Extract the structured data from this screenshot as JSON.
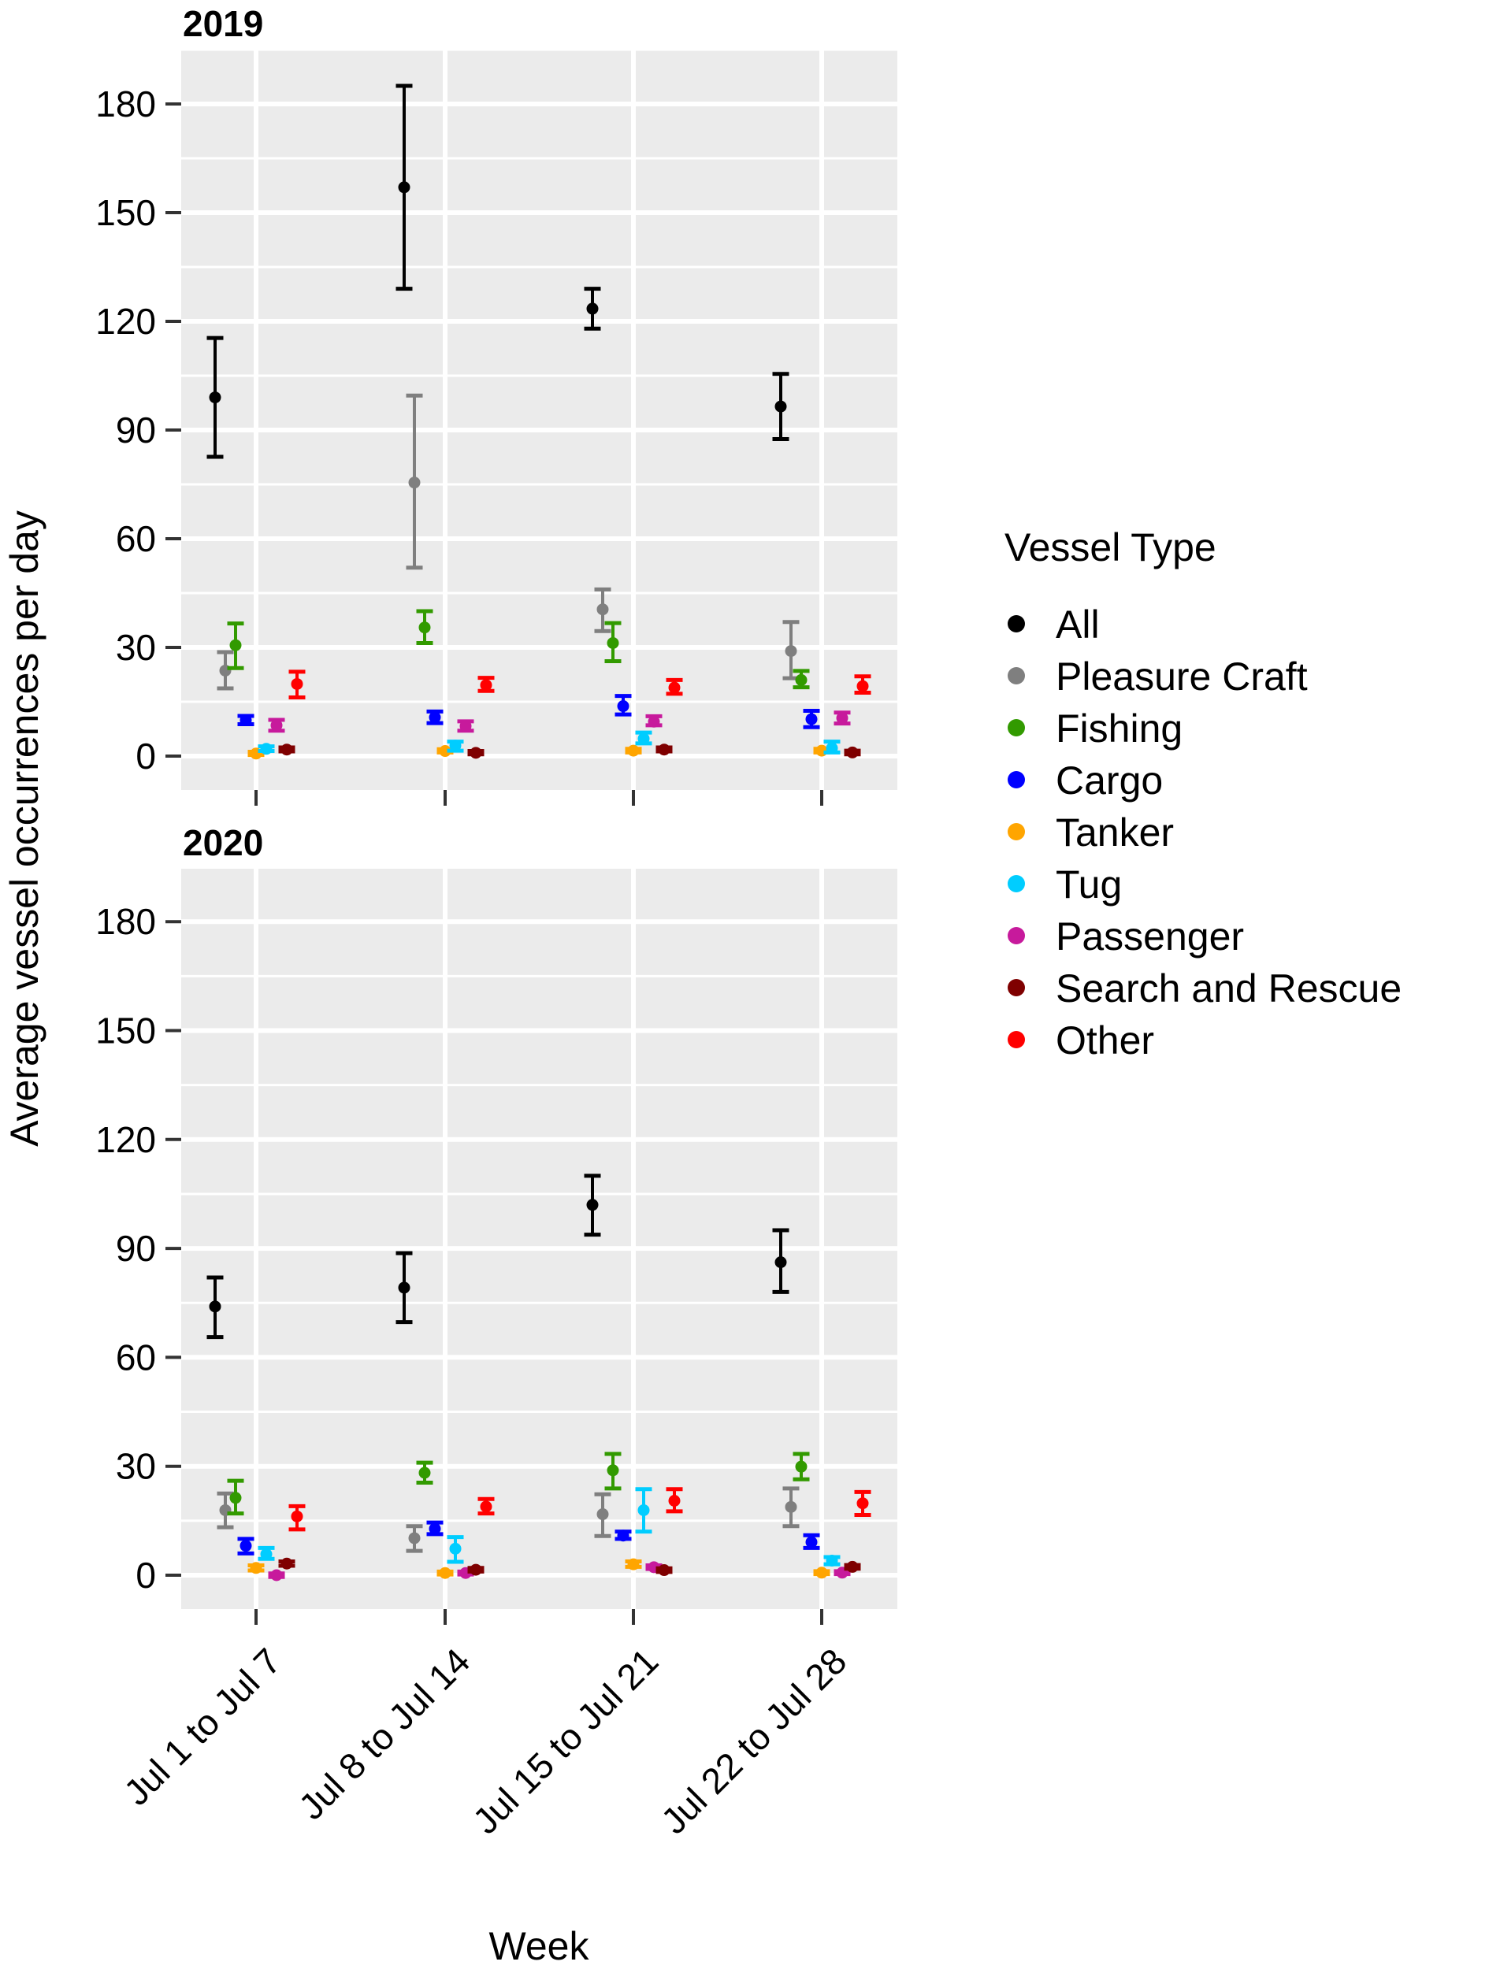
{
  "chart_data": {
    "type": "scatter",
    "subtype": "point-with-errorbars, faceted",
    "title": "",
    "xlabel": "Week",
    "ylabel": "Average vessel occurrences per day",
    "ylim": [
      -9,
      195
    ],
    "yticks": [
      0,
      30,
      60,
      90,
      120,
      150,
      180
    ],
    "grid": true,
    "legend_position": "right",
    "legend_title": "Vessel Type",
    "categories": [
      "Jul 1 to Jul 7",
      "Jul 8 to Jul 14",
      "Jul 15 to Jul 21",
      "Jul 22 to Jul 28"
    ],
    "series_names": [
      "All",
      "Pleasure Craft",
      "Fishing",
      "Cargo",
      "Tanker",
      "Tug",
      "Passenger",
      "Search and Rescue",
      "Other"
    ],
    "series_colors": {
      "All": "#000000",
      "Pleasure Craft": "#7f7f7f",
      "Fishing": "#329a00",
      "Cargo": "#0000ff",
      "Tanker": "#ffa500",
      "Tug": "#00cdff",
      "Passenger": "#c71a9c",
      "Search and Rescue": "#7f0000",
      "Other": "#ff0000"
    },
    "panels": [
      {
        "title": "2019",
        "series": [
          {
            "name": "All",
            "mean": [
              99,
              157,
              123.5,
              96.5
            ],
            "lower": [
              82.6,
              129,
              118,
              87.5
            ],
            "upper": [
              115.4,
              185,
              129,
              105.5
            ]
          },
          {
            "name": "Pleasure Craft",
            "mean": [
              23.6,
              75.5,
              40.5,
              29
            ],
            "lower": [
              18.7,
              52,
              34.5,
              21.5
            ],
            "upper": [
              28.7,
              99.5,
              46,
              37
            ]
          },
          {
            "name": "Fishing",
            "mean": [
              30.6,
              35.5,
              31.2,
              21
            ],
            "lower": [
              24.3,
              31.2,
              26.2,
              19
            ],
            "upper": [
              36.6,
              40,
              36.7,
              23.5
            ]
          },
          {
            "name": "Cargo",
            "mean": [
              9.9,
              10.7,
              13.8,
              10.2
            ],
            "lower": [
              8.8,
              9.1,
              11.5,
              8
            ],
            "upper": [
              11.1,
              12.3,
              16.6,
              12.5
            ]
          },
          {
            "name": "Tanker",
            "mean": [
              0.7,
              1.4,
              1.5,
              1.5
            ],
            "lower": [
              0.3,
              1,
              1,
              1
            ],
            "upper": [
              1.2,
              1.9,
              2,
              2
            ]
          },
          {
            "name": "Tug",
            "mean": [
              2,
              2.9,
              4.8,
              2.2
            ],
            "lower": [
              1.4,
              1.5,
              3.5,
              1
            ],
            "upper": [
              2.7,
              4,
              6.5,
              4
            ]
          },
          {
            "name": "Passenger",
            "mean": [
              8.5,
              8.3,
              9.5,
              10.5
            ],
            "lower": [
              7,
              7,
              8.5,
              9
            ],
            "upper": [
              10,
              9.6,
              11,
              12
            ]
          },
          {
            "name": "Search and Rescue",
            "mean": [
              1.8,
              0.9,
              1.8,
              1
            ],
            "lower": [
              1.3,
              0.5,
              1.3,
              0.5
            ],
            "upper": [
              2.4,
              1.4,
              2.4,
              1.5
            ]
          },
          {
            "name": "Other",
            "mean": [
              19.9,
              19.6,
              18.9,
              19.3
            ],
            "lower": [
              16.2,
              18,
              17.2,
              17.5
            ],
            "upper": [
              23.3,
              21.6,
              21,
              22
            ]
          }
        ]
      },
      {
        "title": "2020",
        "series": [
          {
            "name": "All",
            "mean": [
              74,
              79.2,
              102,
              86.2
            ],
            "lower": [
              65.6,
              69.7,
              93.8,
              78
            ],
            "upper": [
              82,
              88.7,
              110,
              95
            ]
          },
          {
            "name": "Pleasure Craft",
            "mean": [
              17.9,
              10.2,
              16.8,
              18.8
            ],
            "lower": [
              13.2,
              6.7,
              10.8,
              13.5
            ],
            "upper": [
              22.5,
              13.5,
              22.3,
              23.9
            ]
          },
          {
            "name": "Fishing",
            "mean": [
              21.3,
              28.2,
              28.9,
              29.9
            ],
            "lower": [
              17,
              25.5,
              23.9,
              26.4
            ],
            "upper": [
              26,
              31,
              33.4,
              33.4
            ]
          },
          {
            "name": "Cargo",
            "mean": [
              8.1,
              12.8,
              10.9,
              9.1
            ],
            "lower": [
              6,
              11.3,
              10,
              7.5
            ],
            "upper": [
              10,
              14.5,
              12,
              11
            ]
          },
          {
            "name": "Tanker",
            "mean": [
              2,
              0.6,
              3,
              0.7
            ],
            "lower": [
              1.3,
              0.2,
              2.3,
              0.3
            ],
            "upper": [
              2.7,
              1,
              3.8,
              1.1
            ]
          },
          {
            "name": "Tug",
            "mean": [
              5.8,
              7.3,
              17.9,
              4
            ],
            "lower": [
              4.5,
              3.7,
              12,
              3
            ],
            "upper": [
              7.5,
              10.5,
              23.7,
              5
            ]
          },
          {
            "name": "Passenger",
            "mean": [
              0,
              0.6,
              2.2,
              0.7
            ],
            "lower": [
              -0.5,
              0.2,
              1.7,
              0.3
            ],
            "upper": [
              0.5,
              1,
              2.7,
              1.1
            ]
          },
          {
            "name": "Search and Rescue",
            "mean": [
              3.2,
              1.5,
              1.4,
              2.3
            ],
            "lower": [
              2.6,
              1,
              0.9,
              1.8
            ],
            "upper": [
              3.8,
              2,
              1.9,
              2.8
            ]
          },
          {
            "name": "Other",
            "mean": [
              16.2,
              18.9,
              20.5,
              19.8
            ],
            "lower": [
              12.6,
              17,
              17.6,
              16.6
            ],
            "upper": [
              19,
              21,
              23.7,
              22.9
            ]
          }
        ]
      }
    ]
  },
  "labels": {
    "panel_2019": "2019",
    "panel_2020": "2020",
    "xlabel": "Week",
    "ylabel": "Average vessel occurrences per day",
    "legend_title": "Vessel Type"
  },
  "legend": {
    "items": [
      {
        "label": "All",
        "color": "#000000"
      },
      {
        "label": "Pleasure Craft",
        "color": "#7f7f7f"
      },
      {
        "label": "Fishing",
        "color": "#329a00"
      },
      {
        "label": "Cargo",
        "color": "#0000ff"
      },
      {
        "label": "Tanker",
        "color": "#ffa500"
      },
      {
        "label": "Tug",
        "color": "#00cdff"
      },
      {
        "label": "Passenger",
        "color": "#c71a9c"
      },
      {
        "label": "Search and Rescue",
        "color": "#7f0000"
      },
      {
        "label": "Other",
        "color": "#ff0000"
      }
    ]
  },
  "style": {
    "panel_bg": "#ebebeb",
    "grid_color": "#ffffff",
    "tick_color": "#333333"
  }
}
